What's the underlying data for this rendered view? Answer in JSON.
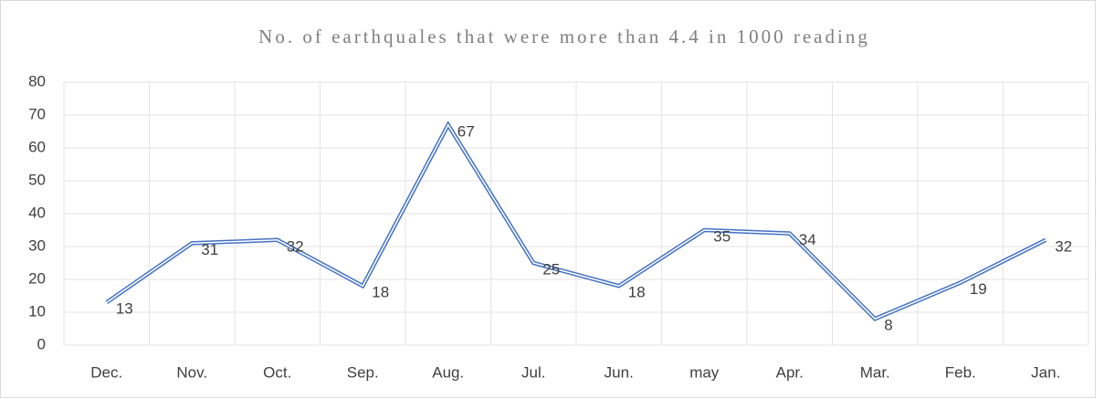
{
  "chart_data": {
    "type": "line",
    "title": "No. of earthquales that were more than 4.4 in 1000 reading",
    "categories": [
      "Dec.",
      "Nov.",
      "Oct.",
      "Sep.",
      "Aug.",
      "Jul.",
      "Jun.",
      "may",
      "Apr.",
      "Mar.",
      "Feb.",
      "Jan."
    ],
    "series": [
      {
        "name": "Series1",
        "color": "#4472c4",
        "values": [
          13,
          31,
          32,
          18,
          67,
          25,
          18,
          35,
          34,
          8,
          19,
          32
        ]
      }
    ],
    "ylim": [
      0,
      80
    ],
    "yticks": [
      0,
      10,
      20,
      30,
      40,
      50,
      60,
      70,
      80
    ],
    "grid": true,
    "data_labels": true
  }
}
